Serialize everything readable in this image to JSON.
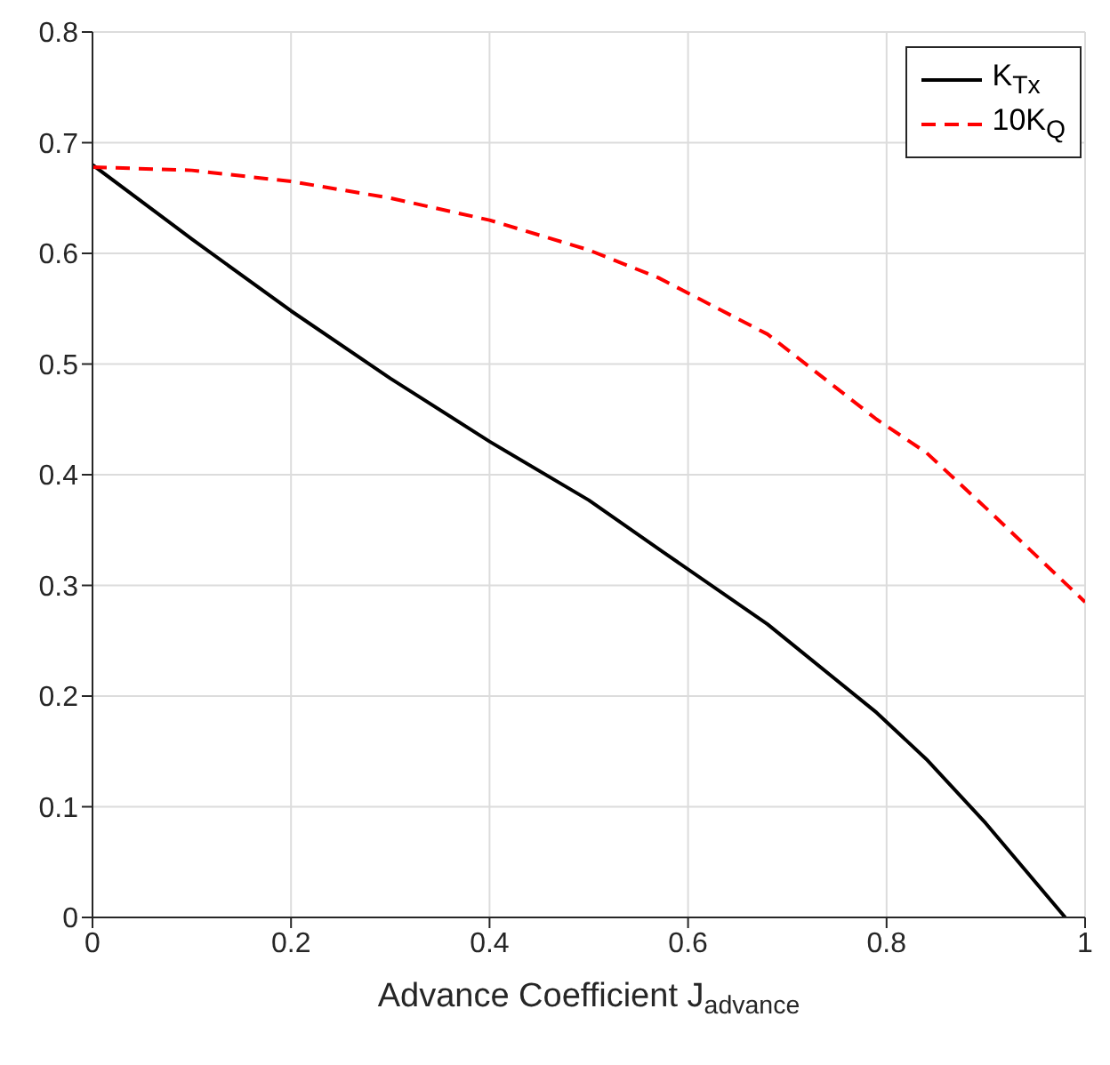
{
  "chart_data": {
    "type": "line",
    "xlabel": "Advance Coefficient J$_{advance}$",
    "xlim": [
      0,
      1
    ],
    "xticks": [
      0,
      0.2,
      0.4,
      0.6,
      0.8,
      1
    ],
    "ylim": [
      0,
      0.8
    ],
    "yticks": [
      0,
      0.1,
      0.2,
      0.3,
      0.4,
      0.5,
      0.6,
      0.7,
      0.8
    ],
    "grid": true,
    "legend": "top right",
    "series": [
      {
        "name": "K$_{Tx}$",
        "color": "#000000",
        "line_style": "solid",
        "x": [
          0,
          0.1,
          0.2,
          0.3,
          0.4,
          0.5,
          0.575,
          0.68,
          0.79,
          0.84,
          0.9,
          0.98
        ],
        "values": [
          0.68,
          0.613,
          0.548,
          0.487,
          0.43,
          0.377,
          0.33,
          0.265,
          0.185,
          0.143,
          0.085,
          0
        ]
      },
      {
        "name": "10K$_{Q}$",
        "color": "#ff0000",
        "line_style": "dashed",
        "x": [
          0,
          0.1,
          0.2,
          0.3,
          0.4,
          0.5,
          0.57,
          0.68,
          0.79,
          0.84,
          0.9,
          1
        ],
        "values": [
          0.678,
          0.675,
          0.665,
          0.65,
          0.63,
          0.603,
          0.578,
          0.527,
          0.45,
          0.42,
          0.37,
          0.285
        ]
      }
    ]
  }
}
